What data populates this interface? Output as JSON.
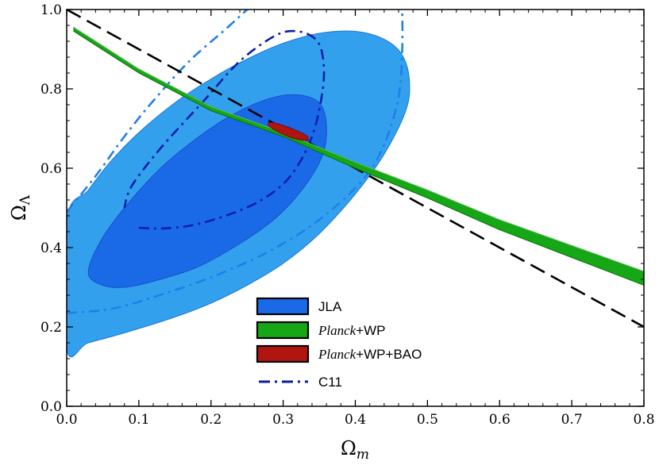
{
  "chart_data": {
    "type": "contour",
    "title": "",
    "xlabel": "Ω",
    "xlabel_sub": "m",
    "ylabel": "Ω",
    "ylabel_sub": "Λ",
    "xlim": [
      0.0,
      0.8
    ],
    "ylim": [
      0.0,
      1.0
    ],
    "x_ticks": [
      0.0,
      0.1,
      0.2,
      0.3,
      0.4,
      0.5,
      0.6,
      0.7,
      0.8
    ],
    "x_tick_labels": [
      "0.0",
      "0.1",
      "0.2",
      "0.3",
      "0.4",
      "0.5",
      "0.6",
      "0.7",
      "0.8"
    ],
    "y_ticks": [
      0.0,
      0.2,
      0.4,
      0.6,
      0.8,
      1.0
    ],
    "y_tick_labels": [
      "0.0",
      "0.2",
      "0.4",
      "0.6",
      "0.8",
      "1.0"
    ],
    "legend_position": "lower-center",
    "flat_universe_line": {
      "style": "dashed",
      "color": "#000000",
      "points": [
        [
          0.0,
          1.0
        ],
        [
          0.8,
          0.2
        ]
      ]
    },
    "series": [
      {
        "name": "JLA",
        "legend_label": "JLA",
        "kind": "confidence-contours",
        "fill_outer": "#33a0ee",
        "fill_inner": "#1a6ae8",
        "edge": "#1850c8",
        "outer_contour": [
          [
            0.0,
            0.145
          ],
          [
            0.03,
            0.16
          ],
          [
            0.08,
            0.185
          ],
          [
            0.15,
            0.225
          ],
          [
            0.2,
            0.26
          ],
          [
            0.25,
            0.305
          ],
          [
            0.3,
            0.36
          ],
          [
            0.35,
            0.435
          ],
          [
            0.4,
            0.535
          ],
          [
            0.44,
            0.635
          ],
          [
            0.47,
            0.745
          ],
          [
            0.475,
            0.82
          ],
          [
            0.465,
            0.885
          ],
          [
            0.44,
            0.925
          ],
          [
            0.4,
            0.945
          ],
          [
            0.35,
            0.94
          ],
          [
            0.3,
            0.915
          ],
          [
            0.25,
            0.875
          ],
          [
            0.2,
            0.825
          ],
          [
            0.15,
            0.765
          ],
          [
            0.1,
            0.69
          ],
          [
            0.06,
            0.615
          ],
          [
            0.03,
            0.545
          ],
          [
            0.0,
            0.47
          ]
        ],
        "inner_contour": [
          [
            0.03,
            0.335
          ],
          [
            0.05,
            0.305
          ],
          [
            0.08,
            0.3
          ],
          [
            0.12,
            0.315
          ],
          [
            0.18,
            0.35
          ],
          [
            0.24,
            0.41
          ],
          [
            0.29,
            0.475
          ],
          [
            0.33,
            0.555
          ],
          [
            0.355,
            0.635
          ],
          [
            0.36,
            0.71
          ],
          [
            0.35,
            0.765
          ],
          [
            0.32,
            0.785
          ],
          [
            0.28,
            0.775
          ],
          [
            0.23,
            0.735
          ],
          [
            0.18,
            0.675
          ],
          [
            0.13,
            0.6
          ],
          [
            0.08,
            0.5
          ],
          [
            0.045,
            0.41
          ]
        ]
      },
      {
        "name": "Planck+WP",
        "legend_label_italic": "Planck",
        "legend_label_rest": "+WP",
        "kind": "band",
        "fill": "#16a716",
        "edge": "#0d6b0d",
        "upper": [
          [
            0.01,
            0.955
          ],
          [
            0.1,
            0.85
          ],
          [
            0.2,
            0.755
          ],
          [
            0.3,
            0.69
          ],
          [
            0.4,
            0.615
          ],
          [
            0.5,
            0.545
          ],
          [
            0.6,
            0.47
          ],
          [
            0.7,
            0.405
          ],
          [
            0.8,
            0.34
          ]
        ],
        "lower": [
          [
            0.01,
            0.945
          ],
          [
            0.1,
            0.84
          ],
          [
            0.2,
            0.745
          ],
          [
            0.3,
            0.68
          ],
          [
            0.4,
            0.6
          ],
          [
            0.5,
            0.525
          ],
          [
            0.6,
            0.445
          ],
          [
            0.7,
            0.375
          ],
          [
            0.8,
            0.305
          ]
        ]
      },
      {
        "name": "Planck+WP+BAO",
        "legend_label_italic": "Planck",
        "legend_label_rest": "+WP+BAO",
        "kind": "confidence-contours",
        "fill": "#b11512",
        "edge": "#6e0c0a",
        "center": [
          0.305,
          0.695
        ],
        "contour": [
          [
            0.28,
            0.715
          ],
          [
            0.3,
            0.708
          ],
          [
            0.33,
            0.685
          ],
          [
            0.335,
            0.672
          ],
          [
            0.33,
            0.67
          ],
          [
            0.31,
            0.678
          ],
          [
            0.285,
            0.7
          ]
        ]
      },
      {
        "name": "C11",
        "legend_label": "C11",
        "kind": "dash-dot-contours",
        "inner_color": "#0a1ea8",
        "outer_color": "#1f80e8",
        "inner_contour": [
          [
            0.1,
            0.45
          ],
          [
            0.13,
            0.448
          ],
          [
            0.17,
            0.455
          ],
          [
            0.22,
            0.48
          ],
          [
            0.27,
            0.52
          ],
          [
            0.31,
            0.58
          ],
          [
            0.34,
            0.68
          ],
          [
            0.355,
            0.8
          ],
          [
            0.355,
            0.88
          ],
          [
            0.345,
            0.925
          ],
          [
            0.32,
            0.945
          ],
          [
            0.29,
            0.935
          ],
          [
            0.24,
            0.87
          ],
          [
            0.19,
            0.77
          ],
          [
            0.13,
            0.65
          ],
          [
            0.09,
            0.555
          ],
          [
            0.08,
            0.5
          ]
        ],
        "outer_contour": [
          [
            0.0,
            0.235
          ],
          [
            0.06,
            0.245
          ],
          [
            0.12,
            0.275
          ],
          [
            0.2,
            0.325
          ],
          [
            0.28,
            0.39
          ],
          [
            0.35,
            0.47
          ],
          [
            0.41,
            0.57
          ],
          [
            0.44,
            0.66
          ],
          [
            0.46,
            0.78
          ],
          [
            0.465,
            0.9
          ],
          [
            0.465,
            1.0
          ]
        ],
        "outer_contour_left": [
          [
            0.0,
            0.49
          ],
          [
            0.04,
            0.58
          ],
          [
            0.08,
            0.68
          ],
          [
            0.12,
            0.77
          ],
          [
            0.17,
            0.87
          ],
          [
            0.22,
            0.95
          ],
          [
            0.25,
            1.0
          ]
        ]
      }
    ]
  }
}
